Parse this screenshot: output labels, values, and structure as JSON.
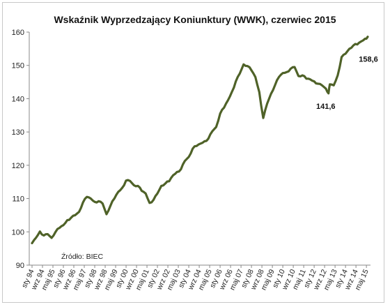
{
  "chart_data": {
    "type": "line",
    "title": "Wskaźnik Wyprzedzający Koniunktury (WWK), czerwiec 2015",
    "xlabel": "",
    "ylabel": "",
    "ylim": [
      90,
      160
    ],
    "yticks": [
      90,
      100,
      110,
      120,
      130,
      140,
      150,
      160
    ],
    "grid": false,
    "legend": "none",
    "line_color": "#4f6228",
    "source": "Źródło: BIEC",
    "x_tick_labels": [
      "sty 94",
      "wrz 94",
      "maj 95",
      "sty 96",
      "wrz 96",
      "maj 97",
      "sty 98",
      "wrz 98",
      "maj 99",
      "sty 00",
      "wrz 00",
      "maj 01",
      "sty 02",
      "wrz 02",
      "maj 03",
      "sty 04",
      "wrz 04",
      "maj 05",
      "sty 06",
      "wrz 06",
      "maj 07",
      "sty 08",
      "wrz 08",
      "maj 09",
      "sty 10",
      "wrz 10",
      "maj 11",
      "sty 12",
      "wrz 12",
      "maj 13",
      "sty 14",
      "wrz 14",
      "maj 15"
    ],
    "annotations": [
      {
        "text": "141,6",
        "x": "gru 12",
        "y": 141.6
      },
      {
        "text": "158,6",
        "x": "cze 15",
        "y": 158.6
      }
    ],
    "series": [
      {
        "x": [
          "sty 94",
          "kwi 94",
          "lip 94",
          "paź 94",
          "sty 95",
          "kwi 95",
          "lip 95",
          "paź 95",
          "sty 96",
          "kwi 96",
          "lip 96",
          "paź 96",
          "sty 97",
          "kwi 97",
          "lip 97",
          "paź 97",
          "sty 98",
          "kwi 98",
          "lip 98",
          "paź 98",
          "sty 99",
          "kwi 99",
          "lip 99",
          "paź 99",
          "sty 00",
          "kwi 00",
          "lip 00",
          "paź 00",
          "sty 01",
          "kwi 01",
          "lip 01",
          "paź 01",
          "sty 02",
          "kwi 02",
          "lip 02",
          "paź 02",
          "sty 03",
          "kwi 03",
          "lip 03",
          "paź 03",
          "sty 04",
          "kwi 04",
          "lip 04",
          "paź 04",
          "sty 05",
          "kwi 05",
          "lip 05",
          "paź 05",
          "sty 06",
          "kwi 06",
          "lip 06",
          "paź 06",
          "sty 07",
          "kwi 07",
          "lip 07",
          "paź 07",
          "sty 08",
          "kwi 08",
          "lip 08",
          "paź 08",
          "sty 09",
          "kwi 09",
          "lip 09",
          "paź 09",
          "sty 10",
          "kwi 10",
          "lip 10",
          "paź 10",
          "sty 11",
          "kwi 11",
          "lip 11",
          "paź 11",
          "sty 12",
          "kwi 12",
          "lip 12",
          "paź 12",
          "gru 12",
          "sty 13",
          "kwi 13",
          "lip 13",
          "paź 13",
          "sty 14",
          "kwi 14",
          "lip 14",
          "paź 14",
          "sty 15",
          "kwi 15",
          "cze 15"
        ],
        "values": [
          96.6,
          98.2,
          100.1,
          98.9,
          99.3,
          98.2,
          100.0,
          101.2,
          102.0,
          103.5,
          104.3,
          105.0,
          106.0,
          108.8,
          110.5,
          110.0,
          109.0,
          109.2,
          108.5,
          105.3,
          107.8,
          110.0,
          112.0,
          113.2,
          115.4,
          115.3,
          114.0,
          113.8,
          112.3,
          111.5,
          108.7,
          109.6,
          111.5,
          113.8,
          114.5,
          115.2,
          117.0,
          118.0,
          118.8,
          121.3,
          122.5,
          125.0,
          125.8,
          126.5,
          127.2,
          128.0,
          130.2,
          131.5,
          135.5,
          137.3,
          139.5,
          142.0,
          145.2,
          147.5,
          150.3,
          149.8,
          148.5,
          146.5,
          142.0,
          134.2,
          138.5,
          141.5,
          144.0,
          146.5,
          147.7,
          148.0,
          149.0,
          149.5,
          146.8,
          147.0,
          146.0,
          145.8,
          145.2,
          144.5,
          144.0,
          143.0,
          141.6,
          144.3,
          144.0,
          147.0,
          152.5,
          153.5,
          155.0,
          156.0,
          156.3,
          157.2,
          158.0,
          158.6
        ]
      }
    ]
  }
}
